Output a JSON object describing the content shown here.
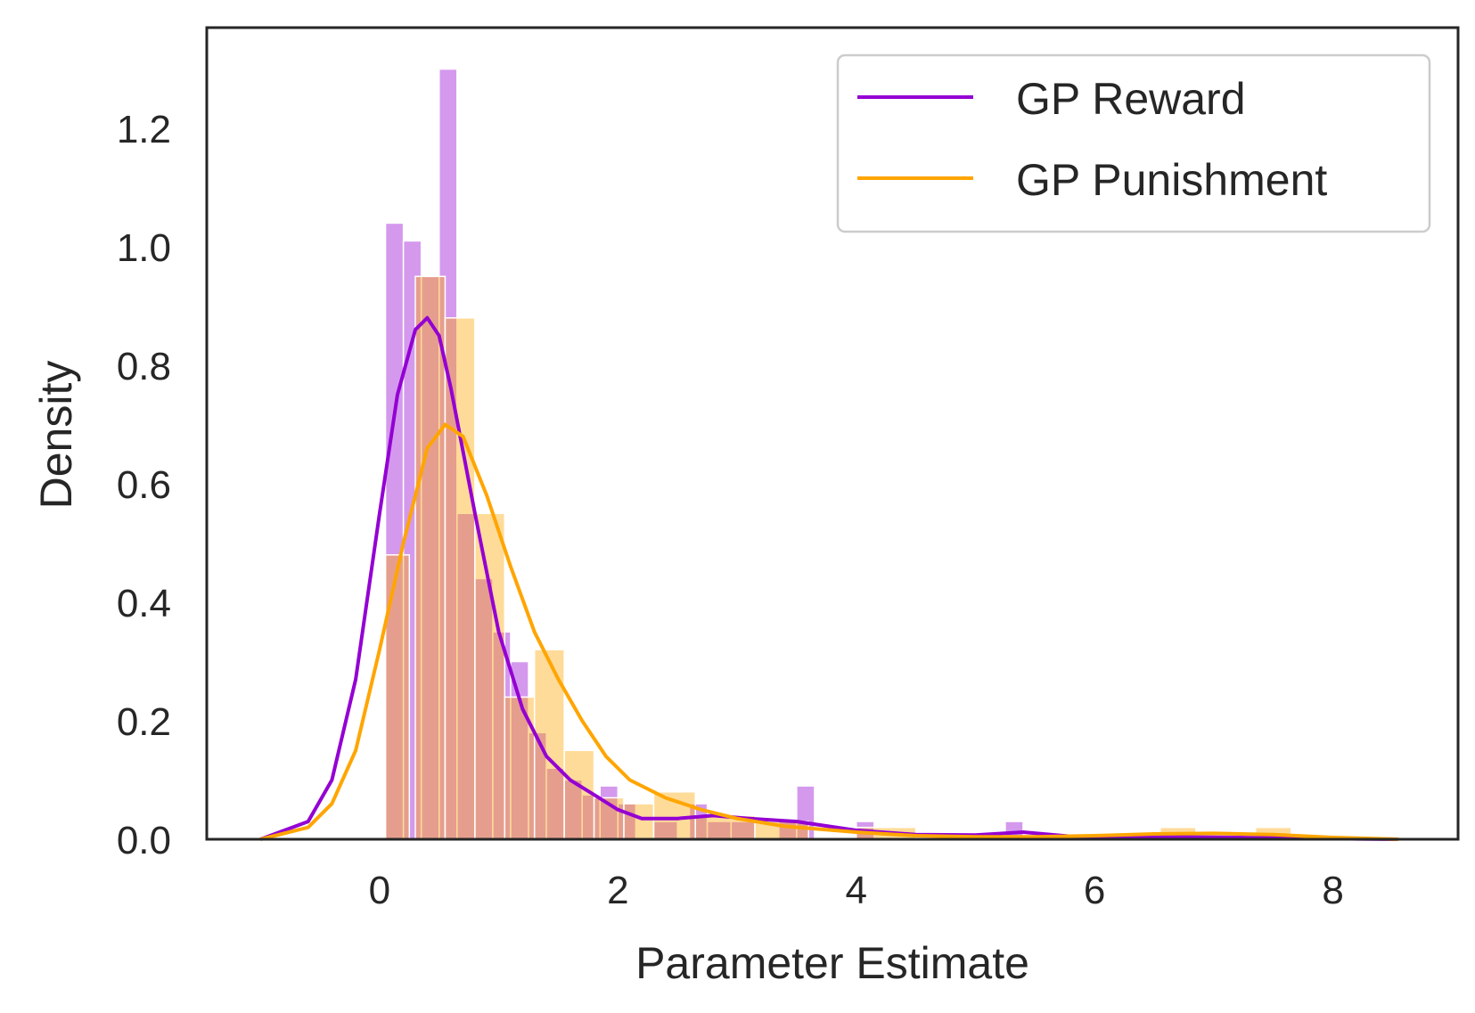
{
  "chart_data": {
    "type": "histogram+kde",
    "xlabel": "Parameter Estimate",
    "ylabel": "Density",
    "xlim": [
      -1.45,
      9.05
    ],
    "ylim": [
      0,
      1.37
    ],
    "x_ticks": [
      0,
      2,
      4,
      6,
      8
    ],
    "y_ticks": [
      0.0,
      0.2,
      0.4,
      0.6,
      0.8,
      1.0,
      1.2
    ],
    "x_tick_labels": [
      "0",
      "2",
      "4",
      "6",
      "8"
    ],
    "y_tick_labels": [
      "0.0",
      "0.2",
      "0.4",
      "0.6",
      "0.8",
      "1.0",
      "1.2"
    ],
    "grid": false,
    "legend_position": "top-right",
    "series": [
      {
        "name": "GP Reward",
        "color": "#9400D3",
        "histogram": [
          [
            0.05,
            0.2,
            1.04
          ],
          [
            0.2,
            0.35,
            1.01
          ],
          [
            0.35,
            0.5,
            0.95
          ],
          [
            0.5,
            0.65,
            1.3
          ],
          [
            0.65,
            0.8,
            0.55
          ],
          [
            0.8,
            0.95,
            0.44
          ],
          [
            0.95,
            1.1,
            0.35
          ],
          [
            1.1,
            1.25,
            0.3
          ],
          [
            1.25,
            1.4,
            0.18
          ],
          [
            1.4,
            1.55,
            0.12
          ],
          [
            1.55,
            1.7,
            0.1
          ],
          [
            1.7,
            1.85,
            0.075
          ],
          [
            1.85,
            2.0,
            0.09
          ],
          [
            2.0,
            2.15,
            0.06
          ],
          [
            2.3,
            2.5,
            0.03
          ],
          [
            2.6,
            2.75,
            0.06
          ],
          [
            2.75,
            2.95,
            0.03
          ],
          [
            2.95,
            3.15,
            0.03
          ],
          [
            3.35,
            3.5,
            0.03
          ],
          [
            3.5,
            3.65,
            0.09
          ],
          [
            4.0,
            4.15,
            0.03
          ],
          [
            5.25,
            5.4,
            0.03
          ]
        ],
        "kde": [
          [
            -1.0,
            0.0
          ],
          [
            -0.6,
            0.03
          ],
          [
            -0.4,
            0.1
          ],
          [
            -0.2,
            0.27
          ],
          [
            0.0,
            0.55
          ],
          [
            0.15,
            0.75
          ],
          [
            0.3,
            0.86
          ],
          [
            0.4,
            0.88
          ],
          [
            0.5,
            0.85
          ],
          [
            0.6,
            0.76
          ],
          [
            0.8,
            0.55
          ],
          [
            1.0,
            0.35
          ],
          [
            1.2,
            0.22
          ],
          [
            1.4,
            0.14
          ],
          [
            1.6,
            0.1
          ],
          [
            1.8,
            0.075
          ],
          [
            2.0,
            0.05
          ],
          [
            2.2,
            0.035
          ],
          [
            2.5,
            0.035
          ],
          [
            2.8,
            0.04
          ],
          [
            3.1,
            0.035
          ],
          [
            3.5,
            0.03
          ],
          [
            4.0,
            0.015
          ],
          [
            4.5,
            0.008
          ],
          [
            5.0,
            0.007
          ],
          [
            5.4,
            0.012
          ],
          [
            5.8,
            0.005
          ],
          [
            6.5,
            0.004
          ],
          [
            7.2,
            0.003
          ],
          [
            8.0,
            0.001
          ],
          [
            8.55,
            0.0
          ]
        ]
      },
      {
        "name": "GP Punishment",
        "color": "#FFA500",
        "histogram": [
          [
            0.05,
            0.25,
            0.48
          ],
          [
            0.3,
            0.55,
            0.95
          ],
          [
            0.55,
            0.8,
            0.88
          ],
          [
            0.8,
            1.05,
            0.55
          ],
          [
            1.05,
            1.3,
            0.24
          ],
          [
            1.3,
            1.55,
            0.32
          ],
          [
            1.55,
            1.8,
            0.15
          ],
          [
            1.8,
            2.05,
            0.07
          ],
          [
            2.05,
            2.3,
            0.06
          ],
          [
            2.3,
            2.65,
            0.08
          ],
          [
            2.65,
            3.15,
            0.04
          ],
          [
            3.15,
            3.6,
            0.03
          ],
          [
            4.0,
            4.5,
            0.02
          ],
          [
            6.55,
            6.85,
            0.02
          ],
          [
            7.35,
            7.65,
            0.02
          ]
        ],
        "kde": [
          [
            -1.0,
            0.0
          ],
          [
            -0.6,
            0.02
          ],
          [
            -0.4,
            0.06
          ],
          [
            -0.2,
            0.15
          ],
          [
            0.0,
            0.32
          ],
          [
            0.2,
            0.5
          ],
          [
            0.4,
            0.66
          ],
          [
            0.55,
            0.7
          ],
          [
            0.7,
            0.68
          ],
          [
            0.9,
            0.58
          ],
          [
            1.1,
            0.46
          ],
          [
            1.3,
            0.35
          ],
          [
            1.5,
            0.27
          ],
          [
            1.7,
            0.2
          ],
          [
            1.9,
            0.14
          ],
          [
            2.1,
            0.1
          ],
          [
            2.4,
            0.07
          ],
          [
            2.7,
            0.05
          ],
          [
            3.0,
            0.035
          ],
          [
            3.4,
            0.022
          ],
          [
            4.0,
            0.012
          ],
          [
            4.5,
            0.006
          ],
          [
            5.0,
            0.004
          ],
          [
            5.5,
            0.004
          ],
          [
            6.0,
            0.006
          ],
          [
            6.5,
            0.009
          ],
          [
            7.0,
            0.01
          ],
          [
            7.5,
            0.008
          ],
          [
            8.0,
            0.003
          ],
          [
            8.55,
            0.0
          ]
        ]
      }
    ]
  }
}
